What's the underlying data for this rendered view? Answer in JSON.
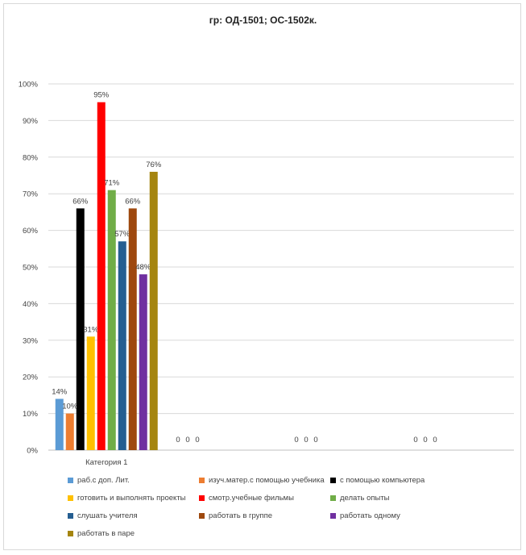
{
  "chart_data": {
    "type": "bar",
    "title": "гр: ОД-1501; ОС-1502к.",
    "xlabel": "",
    "ylabel": "",
    "ylim": [
      0,
      1
    ],
    "y_ticks": [
      "0%",
      "10%",
      "20%",
      "30%",
      "40%",
      "50%",
      "60%",
      "70%",
      "80%",
      "90%",
      "100%"
    ],
    "grid": true,
    "legend_position": "bottom",
    "categories": [
      "Категория 1",
      "",
      "",
      ""
    ],
    "series": [
      {
        "name": "раб.с доп. Лит.",
        "color": "#5b9bd5",
        "values": [
          0.14,
          0,
          0,
          0
        ],
        "labels": [
          "14%",
          "",
          "",
          ""
        ]
      },
      {
        "name": "изуч.матер.с помощью учебника",
        "color": "#ed7d31",
        "values": [
          0.1,
          0,
          0,
          0
        ],
        "labels": [
          "10%",
          "",
          "",
          ""
        ]
      },
      {
        "name": "с помощью компьютера",
        "color": "#000000",
        "values": [
          0.66,
          0,
          0,
          0
        ],
        "labels": [
          "66%",
          "",
          "",
          ""
        ]
      },
      {
        "name": "готовить и выполнять проекты",
        "color": "#ffc000",
        "values": [
          0.31,
          0,
          0,
          0
        ],
        "labels": [
          "31%",
          "",
          "",
          ""
        ]
      },
      {
        "name": "смотр.учебные фильмы",
        "color": "#ff0000",
        "values": [
          0.95,
          0,
          0,
          0
        ],
        "labels": [
          "95%",
          "",
          "",
          ""
        ]
      },
      {
        "name": "делать опыты",
        "color": "#70ad47",
        "values": [
          0.71,
          0,
          0,
          0
        ],
        "labels": [
          "71%",
          "",
          "",
          ""
        ]
      },
      {
        "name": "слушать учителя",
        "color": "#255e91",
        "values": [
          0.57,
          0,
          0,
          0
        ],
        "labels": [
          "57%",
          "",
          "",
          ""
        ]
      },
      {
        "name": "работать в группе",
        "color": "#9e480e",
        "values": [
          0.66,
          0,
          0,
          0
        ],
        "labels": [
          "66%",
          "",
          "",
          ""
        ]
      },
      {
        "name": "работать одному",
        "color": "#7030a0",
        "values": [
          0.48,
          0,
          0,
          0
        ],
        "labels": [
          "48%",
          "",
          "",
          ""
        ]
      },
      {
        "name": "работать в паре",
        "color": "#a5850f",
        "values": [
          0.76,
          0,
          0,
          0
        ],
        "labels": [
          "76%",
          "",
          "",
          ""
        ]
      }
    ],
    "zero_labels": [
      "0",
      "0",
      "0"
    ]
  }
}
